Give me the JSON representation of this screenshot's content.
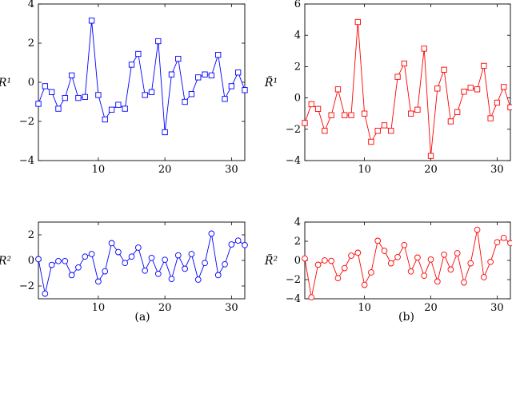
{
  "captions": [
    "(a)",
    "(b)"
  ],
  "chart_data": [
    {
      "type": "line",
      "ylabel": "R¹",
      "color": "#0000ff",
      "marker": "square",
      "xlim": [
        1,
        32
      ],
      "ylim": [
        -4,
        4
      ],
      "xticks": [
        10,
        20,
        30
      ],
      "yticks": [
        -4,
        -2,
        0,
        2,
        4
      ],
      "x": [
        1,
        2,
        3,
        4,
        5,
        6,
        7,
        8,
        9,
        10,
        11,
        12,
        13,
        14,
        15,
        16,
        17,
        18,
        19,
        20,
        21,
        22,
        23,
        24,
        25,
        26,
        27,
        28,
        29,
        30,
        31,
        32
      ],
      "series": [
        {
          "values": [
            -1.1,
            -0.2,
            -0.5,
            -1.35,
            -0.8,
            0.35,
            -0.8,
            -0.75,
            3.15,
            -0.65,
            -1.9,
            -1.4,
            -1.15,
            -1.35,
            0.9,
            1.45,
            -0.65,
            -0.5,
            2.1,
            -2.55,
            0.4,
            1.2,
            -1.0,
            -0.6,
            0.25,
            0.4,
            0.35,
            1.4,
            -0.85,
            -0.2,
            0.5,
            -0.4
          ]
        }
      ]
    },
    {
      "type": "line",
      "ylabel": "R̃¹",
      "color": "#ff0000",
      "marker": "square",
      "xlim": [
        1,
        32
      ],
      "ylim": [
        -4,
        6
      ],
      "xticks": [
        10,
        20,
        30
      ],
      "yticks": [
        -4,
        -2,
        0,
        2,
        4,
        6
      ],
      "x": [
        1,
        2,
        3,
        4,
        5,
        6,
        7,
        8,
        9,
        10,
        11,
        12,
        13,
        14,
        15,
        16,
        17,
        18,
        19,
        20,
        21,
        22,
        23,
        24,
        25,
        26,
        27,
        28,
        29,
        30,
        31,
        32
      ],
      "series": [
        {
          "values": [
            -1.6,
            -0.4,
            -0.7,
            -2.1,
            -1.1,
            0.55,
            -1.1,
            -1.1,
            4.85,
            -1.0,
            -2.8,
            -2.1,
            -1.75,
            -2.1,
            1.35,
            2.2,
            -1.0,
            -0.75,
            3.15,
            -3.7,
            0.6,
            1.8,
            -1.5,
            -0.9,
            0.4,
            0.65,
            0.55,
            2.05,
            -1.3,
            -0.3,
            0.7,
            -0.6
          ]
        }
      ]
    },
    {
      "type": "line",
      "ylabel": "R²",
      "color": "#0000ff",
      "marker": "circle",
      "xlim": [
        1,
        32
      ],
      "ylim": [
        -3,
        3
      ],
      "xticks": [
        10,
        20,
        30
      ],
      "yticks": [
        -2,
        0,
        2
      ],
      "x": [
        1,
        2,
        3,
        4,
        5,
        6,
        7,
        8,
        9,
        10,
        11,
        12,
        13,
        14,
        15,
        16,
        17,
        18,
        19,
        20,
        21,
        22,
        23,
        24,
        25,
        26,
        27,
        28,
        29,
        30,
        31,
        32
      ],
      "series": [
        {
          "values": [
            0.1,
            -2.6,
            -0.35,
            -0.05,
            -0.05,
            -1.15,
            -0.55,
            0.3,
            0.5,
            -1.65,
            -0.85,
            1.35,
            0.65,
            -0.2,
            0.3,
            1.0,
            -0.8,
            0.2,
            -1.05,
            0.05,
            -1.45,
            0.4,
            -0.65,
            0.5,
            -1.5,
            -0.2,
            2.1,
            -1.15,
            -0.3,
            1.25,
            1.55,
            1.2
          ]
        }
      ]
    },
    {
      "type": "line",
      "ylabel": "R̃²",
      "color": "#ff0000",
      "marker": "circle",
      "xlim": [
        1,
        32
      ],
      "ylim": [
        -4,
        4
      ],
      "xticks": [
        10,
        20,
        30
      ],
      "yticks": [
        -4,
        -2,
        0,
        2,
        4
      ],
      "x": [
        1,
        2,
        3,
        4,
        5,
        6,
        7,
        8,
        9,
        10,
        11,
        12,
        13,
        14,
        15,
        16,
        17,
        18,
        19,
        20,
        21,
        22,
        23,
        24,
        25,
        26,
        27,
        28,
        29,
        30,
        31,
        32
      ],
      "series": [
        {
          "values": [
            0.2,
            -3.85,
            -0.45,
            0.0,
            -0.05,
            -1.85,
            -0.8,
            0.5,
            0.8,
            -2.55,
            -1.25,
            2.05,
            1.0,
            -0.3,
            0.35,
            1.6,
            -1.15,
            0.3,
            -1.6,
            0.1,
            -2.2,
            0.6,
            -0.95,
            0.75,
            -2.3,
            -0.3,
            3.2,
            -1.75,
            -0.15,
            1.9,
            2.35,
            1.8
          ]
        }
      ]
    }
  ]
}
